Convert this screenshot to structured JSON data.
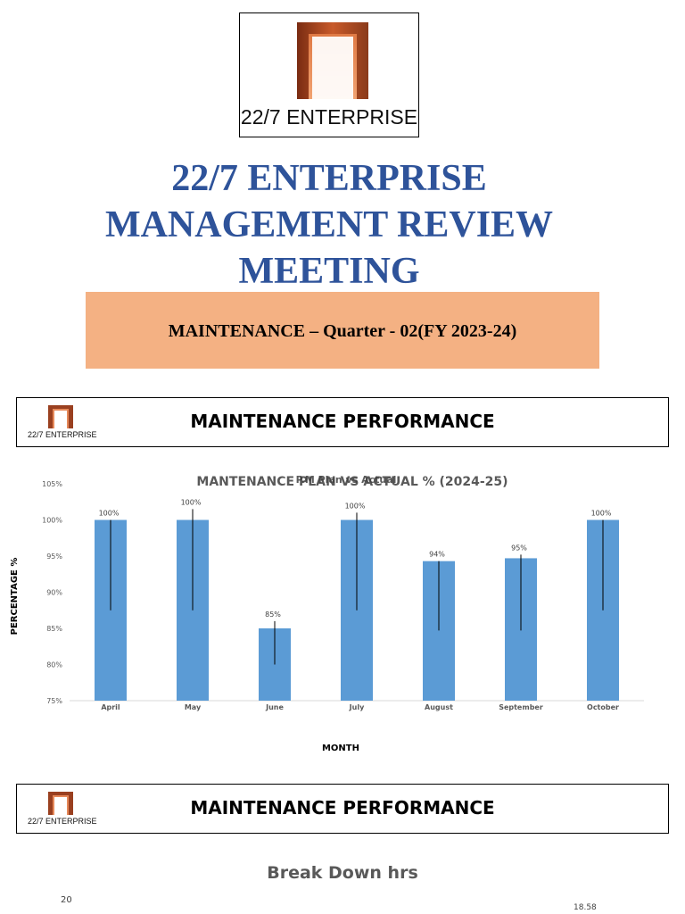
{
  "logo": {
    "text": "22/7 ENTERPRISE",
    "arch_icon": "arch-logo-icon",
    "colors": {
      "arch_dark": "#8a3a1a",
      "arch_light": "#d8693a"
    }
  },
  "title": {
    "line1": "22/7 ENTERPRISE",
    "line2": "MANAGEMENT REVIEW",
    "line3": "MEETING",
    "color": "#2e539a"
  },
  "band": {
    "text": "MAINTENANCE – Quarter - 02(FY 2023-24)",
    "color": "#f4b183"
  },
  "section1": {
    "logo_text": "22/7 ENTERPRISE",
    "title": "MAINTENANCE PERFORMANCE"
  },
  "section2": {
    "logo_text": "22/7 ENTERPRISE",
    "title": "MAINTENANCE PERFORMANCE"
  },
  "chart_data": {
    "type": "bar",
    "title": "MANTENANCE PLAN VS ACTUAL % (2024-25)",
    "overlay_title": "P.M Plan vs Actual",
    "xlabel": "MONTH",
    "ylabel": "PERCENTAGE %",
    "ylim": [
      75,
      105
    ],
    "yticks": [
      "75%",
      "80%",
      "85%",
      "90%",
      "95%",
      "100%",
      "105%"
    ],
    "categories": [
      "April",
      "May",
      "June",
      "July",
      "August",
      "September",
      "October"
    ],
    "values": [
      100,
      100,
      85,
      100,
      94.3,
      94.7,
      100
    ],
    "labels": [
      "100%",
      "100%",
      "85%",
      "100%",
      "94%",
      "95%",
      "100%"
    ],
    "error_low": [
      87.5,
      87.5,
      80,
      87.5,
      84.7,
      84.7,
      87.5
    ],
    "error_high": [
      100,
      101.5,
      86,
      101,
      94.3,
      95.2,
      100
    ],
    "bar_color": "#5b9bd5",
    "grid": false
  },
  "breakdown": {
    "title": "Break Down hrs",
    "axis_tick": "20",
    "value_label": "18.58"
  }
}
